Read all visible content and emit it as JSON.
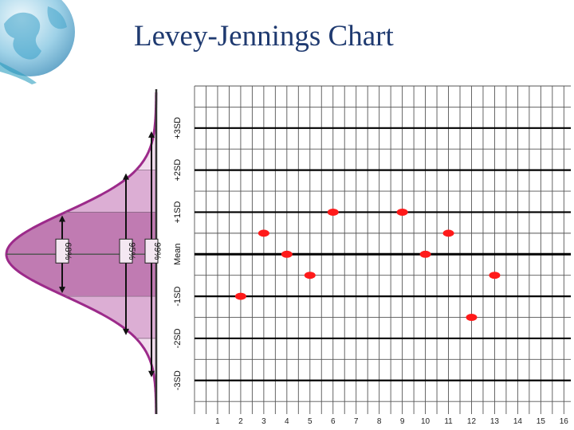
{
  "slide": {
    "title": "Levey-Jennings Chart"
  },
  "chart_data": {
    "type": "scatter",
    "title": "",
    "x": [
      2,
      3,
      4,
      5,
      6,
      9,
      10,
      11,
      12,
      13
    ],
    "y": [
      -1.0,
      0.5,
      0.0,
      -0.5,
      1.0,
      1.0,
      0.0,
      0.5,
      -1.5,
      -0.5
    ],
    "x_ticks": [
      1,
      2,
      3,
      4,
      5,
      6,
      7,
      8,
      9,
      10,
      11,
      12,
      13,
      14,
      15,
      16
    ],
    "xlim": [
      0,
      16.3
    ],
    "ylim": [
      -3.8,
      4.0
    ],
    "sd_lines": [
      {
        "value": 3,
        "label": "+3SD"
      },
      {
        "value": 2,
        "label": "+2SD"
      },
      {
        "value": 1,
        "label": "+1SD"
      },
      {
        "value": 0,
        "label": "Mean"
      },
      {
        "value": -1,
        "label": "-1SD"
      },
      {
        "value": -2,
        "label": "-2SD"
      },
      {
        "value": -3,
        "label": "-3SD"
      }
    ],
    "distribution_bands": [
      {
        "label": "68%",
        "range": [
          -1,
          1
        ]
      },
      {
        "label": "95%",
        "range": [
          -2,
          2
        ]
      },
      {
        "label": "99%",
        "range": [
          -3,
          3
        ]
      }
    ],
    "grid": true,
    "colors": {
      "points": "#ff1a1a",
      "curve": "#9c2a8a",
      "band_1sd": "#c07bb2",
      "band_2sd": "#dcaed4",
      "band_3sd": "#f0dcec",
      "title": "#1f3a70"
    }
  }
}
